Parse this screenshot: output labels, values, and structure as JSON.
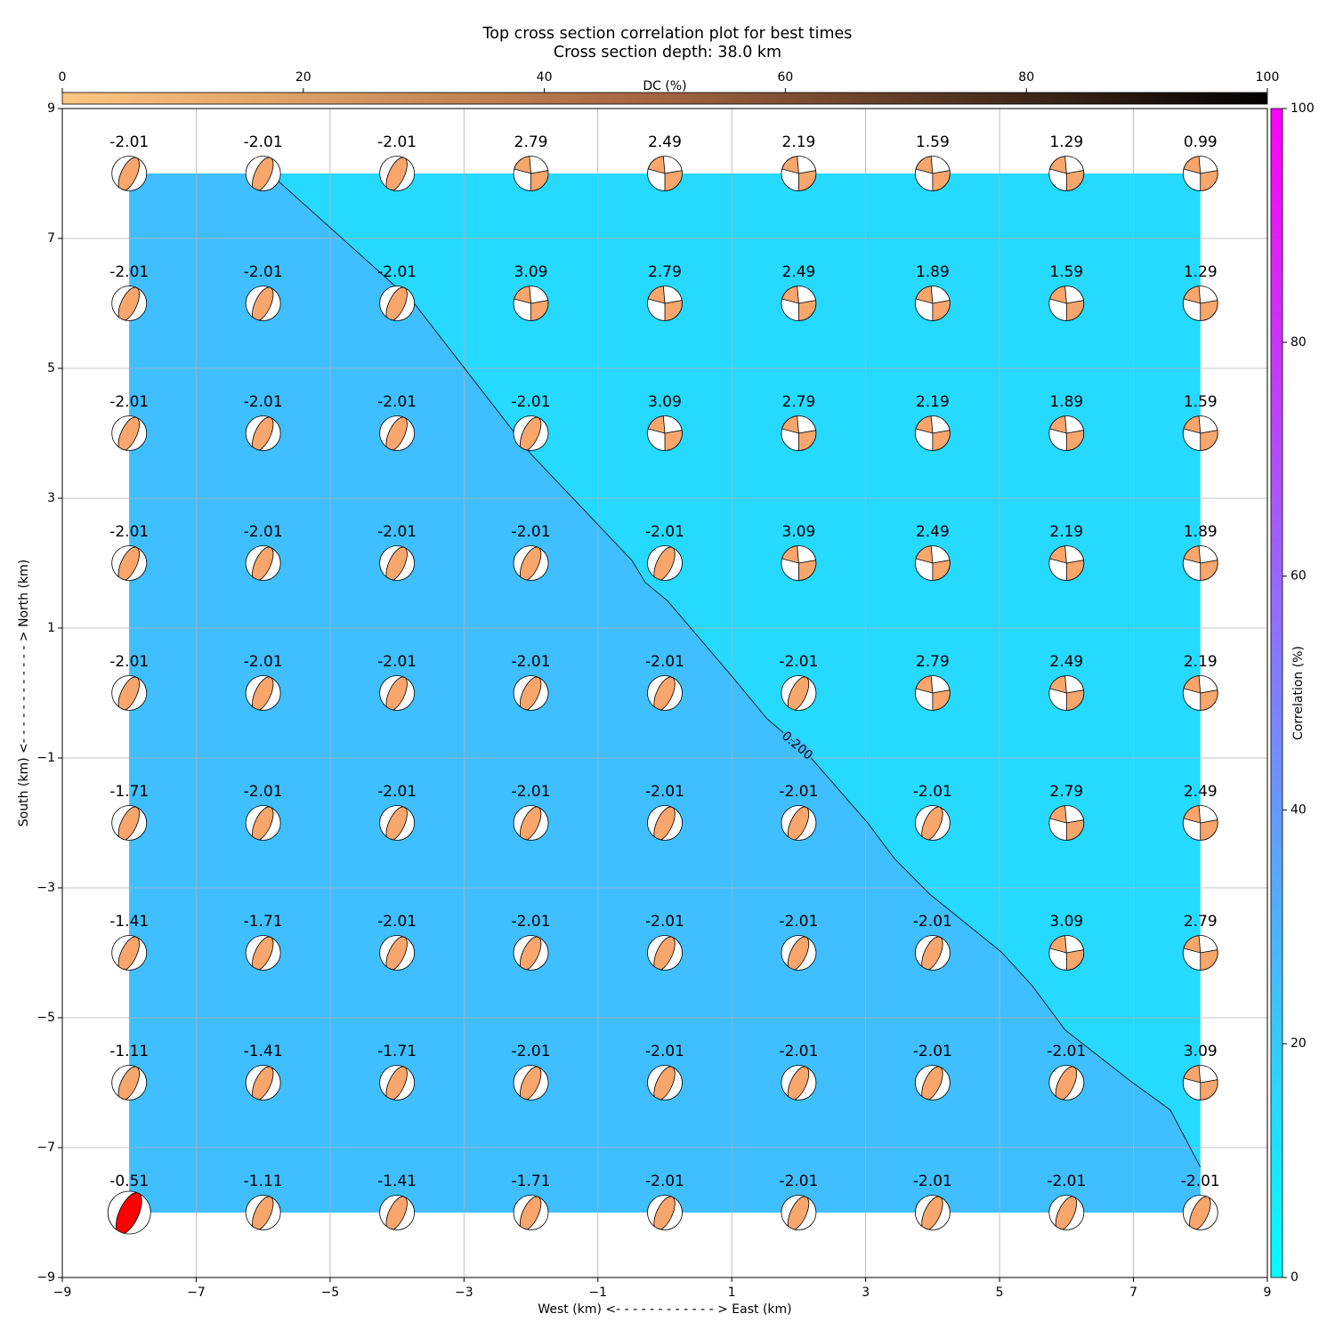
{
  "chart_data": {
    "type": "contour-mechanism",
    "title": "Top cross section correlation plot for best times",
    "subtitle": "Cross section depth: 38.0 km",
    "x_label": "West (km) <- - - - - - - - - - - - > East (km)",
    "y_label": "South (km) <- - - - - - - - - - - - > North (km)",
    "xlim": [
      -9,
      9
    ],
    "ylim": [
      -9,
      9
    ],
    "xticks": [
      {
        "value": -9,
        "label": "−9"
      },
      {
        "value": -7,
        "label": "−7"
      },
      {
        "value": -5,
        "label": "−5"
      },
      {
        "value": -3,
        "label": "−3"
      },
      {
        "value": -1,
        "label": "−1"
      },
      1,
      3,
      5,
      7,
      9
    ],
    "yticks": [
      {
        "value": -9,
        "label": "−9"
      },
      {
        "value": -7,
        "label": "−7"
      },
      {
        "value": -5,
        "label": "−5"
      },
      {
        "value": -3,
        "label": "−3"
      },
      {
        "value": -1,
        "label": "−1"
      },
      1,
      3,
      5,
      7,
      9
    ],
    "grid": true,
    "x": [
      -8,
      -6,
      -4,
      -2,
      0,
      2,
      4,
      6,
      8
    ],
    "y": [
      8,
      6,
      4,
      2,
      0,
      -2,
      -4,
      -6,
      -8
    ],
    "values": [
      [
        -2.01,
        -2.01,
        -2.01,
        2.79,
        2.49,
        2.19,
        1.59,
        1.29,
        0.99
      ],
      [
        -2.01,
        -2.01,
        -2.01,
        3.09,
        2.79,
        2.49,
        1.89,
        1.59,
        1.29
      ],
      [
        -2.01,
        -2.01,
        -2.01,
        -2.01,
        3.09,
        2.79,
        2.19,
        1.89,
        1.59
      ],
      [
        -2.01,
        -2.01,
        -2.01,
        -2.01,
        -2.01,
        3.09,
        2.49,
        2.19,
        1.89
      ],
      [
        -2.01,
        -2.01,
        -2.01,
        -2.01,
        -2.01,
        -2.01,
        2.79,
        2.49,
        2.19
      ],
      [
        -1.71,
        -2.01,
        -2.01,
        -2.01,
        -2.01,
        -2.01,
        -2.01,
        2.79,
        2.49
      ],
      [
        -1.41,
        -1.71,
        -2.01,
        -2.01,
        -2.01,
        -2.01,
        -2.01,
        3.09,
        2.79
      ],
      [
        -1.11,
        -1.41,
        -1.71,
        -2.01,
        -2.01,
        -2.01,
        -2.01,
        -2.01,
        3.09
      ],
      [
        -0.51,
        -1.11,
        -1.41,
        -1.71,
        -2.01,
        -2.01,
        -2.01,
        -2.01,
        -2.01
      ]
    ],
    "mechanism_color": "#f9a66c",
    "best_color": "#ff0000",
    "best_index": [
      8,
      0
    ],
    "region_colors": [
      "#3fbfff",
      "#26d9ff"
    ],
    "contour": {
      "label": "0.200",
      "x": [
        -5.9,
        -3.75,
        -2.0,
        -0.49,
        -0.29,
        0.04,
        1.0,
        1.53,
        2.1,
        3.03,
        3.43,
        3.96,
        5.03,
        5.49,
        5.98,
        6.95,
        7.55,
        8.0
      ],
      "y": [
        8.0,
        6.01,
        3.68,
        2.04,
        1.7,
        1.42,
        0.26,
        -0.4,
        -0.9,
        -2.0,
        -2.55,
        -3.1,
        -3.99,
        -4.51,
        -5.19,
        -5.97,
        -6.42,
        -7.3
      ]
    },
    "dc_colorbar": {
      "label": "DC (%)",
      "lim": [
        0,
        100
      ],
      "ticks": [
        0,
        20,
        40,
        60,
        80,
        100
      ],
      "colors": [
        "#ffc77f",
        "#a0633f",
        "#000000"
      ]
    },
    "correlation_colorbar": {
      "label": "Correlation (%)",
      "lim": [
        0,
        100
      ],
      "ticks": [
        0,
        20,
        40,
        60,
        80,
        100
      ],
      "colors": [
        "#00ffff",
        "#ff00ff"
      ]
    }
  }
}
